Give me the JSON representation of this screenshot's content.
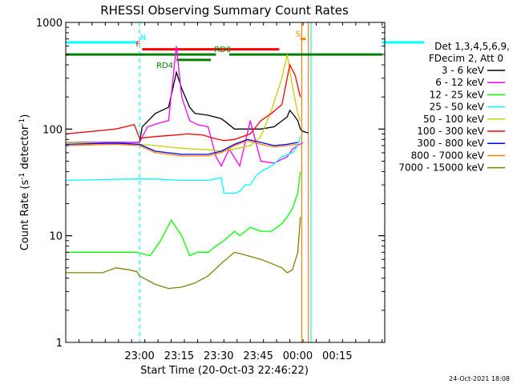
{
  "chart_data": {
    "type": "line",
    "title": "RHESSI Observing Summary Count Rates",
    "xlabel": "Start Time (20-Oct-03 22:46:22)",
    "ylabel_main": "Count Rate (s",
    "ylabel_sup1": "-1",
    "ylabel_mid": " detector",
    "ylabel_sup2": "-1",
    "ylabel_end": ")",
    "y_scale": "log",
    "ylim": [
      1,
      1000
    ],
    "xlim_min": [
      -14,
      107
    ],
    "x_ticks_min": [
      14,
      29,
      44,
      59,
      74,
      89
    ],
    "x_tick_labels": [
      "23:00",
      "23:15",
      "23:30",
      "23:45",
      "00:00",
      "00:15"
    ],
    "y_tick_values": [
      1,
      10,
      100,
      1000
    ],
    "y_tick_labels": [
      "1",
      "10",
      "100",
      "1000"
    ],
    "legend_header": [
      "Det 1,3,4,5,6,9,",
      "FDecim 2, Att 0"
    ],
    "stamp": "24-Oct-2021 18:08",
    "series": [
      {
        "name": "3 - 6 keV",
        "color": "#000000",
        "x": [
          -14,
          14,
          15,
          20,
          25,
          28,
          30,
          33,
          35,
          40,
          45,
          47,
          50,
          55,
          60,
          65,
          70,
          71,
          73,
          74,
          75,
          76,
          78
        ],
        "y": [
          75,
          75,
          105,
          140,
          160,
          340,
          240,
          160,
          140,
          135,
          125,
          115,
          100,
          100,
          100,
          105,
          130,
          150,
          130,
          120,
          100,
          95,
          92
        ]
      },
      {
        "name": "6 - 12 keV",
        "color": "#ff00ff",
        "x": [
          -14,
          14,
          17,
          22,
          25,
          28,
          30,
          33,
          36,
          40,
          43,
          45,
          48,
          52,
          56,
          60,
          65,
          70,
          72,
          74,
          76
        ],
        "y": [
          75,
          75,
          105,
          115,
          120,
          600,
          200,
          120,
          110,
          105,
          55,
          45,
          65,
          45,
          120,
          50,
          48,
          55,
          65,
          70,
          75
        ]
      },
      {
        "name": "12 - 25 keV",
        "color": "#00ff00",
        "x": [
          -14,
          13,
          18,
          22,
          26,
          30,
          33,
          36,
          40,
          43,
          46,
          50,
          52,
          56,
          60,
          64,
          68,
          70,
          72,
          74,
          75
        ],
        "y": [
          7,
          7,
          6.5,
          9,
          14,
          10,
          6.5,
          7,
          7,
          8,
          9,
          11,
          10,
          12,
          11,
          11,
          13,
          15,
          18,
          25,
          40
        ]
      },
      {
        "name": "25 - 50 keV",
        "color": "#00ffff",
        "x": [
          -14,
          10,
          20,
          30,
          40,
          45,
          46,
          50,
          52,
          54,
          56,
          58,
          60,
          64,
          68,
          72,
          74,
          75
        ],
        "y": [
          33,
          34,
          34,
          33,
          33,
          35,
          25,
          25,
          26,
          30,
          30,
          36,
          40,
          45,
          55,
          60,
          70,
          85
        ]
      },
      {
        "name": "50 - 100 keV",
        "color": "#cccc00",
        "x": [
          -14,
          14,
          20,
          30,
          40,
          45,
          50,
          56,
          60,
          64,
          68,
          70,
          72,
          74,
          75
        ],
        "y": [
          75,
          72,
          70,
          66,
          64,
          62,
          65,
          70,
          85,
          150,
          300,
          500,
          250,
          140,
          120
        ]
      },
      {
        "name": "100 - 300 keV",
        "color": "#ff0000",
        "x": [
          -14,
          5,
          12,
          14,
          20,
          28,
          32,
          38,
          42,
          46,
          50,
          56,
          60,
          64,
          68,
          71,
          73,
          75
        ],
        "y": [
          90,
          100,
          110,
          82,
          85,
          88,
          90,
          88,
          82,
          78,
          80,
          90,
          120,
          140,
          170,
          400,
          320,
          200
        ]
      },
      {
        "name": "300 - 800 keV",
        "color": "#0000ff",
        "x": [
          -14,
          5,
          14,
          20,
          30,
          40,
          45,
          50,
          55,
          60,
          65,
          70,
          74
        ],
        "y": [
          72,
          74,
          72,
          62,
          58,
          58,
          62,
          72,
          80,
          75,
          70,
          72,
          75
        ]
      },
      {
        "name": "800 - 7000 keV",
        "color": "#ff8000",
        "x": [
          -14,
          5,
          14,
          20,
          30,
          40,
          45,
          50,
          55,
          60,
          65,
          70,
          74
        ],
        "y": [
          70,
          72,
          70,
          60,
          56,
          56,
          60,
          70,
          78,
          72,
          68,
          70,
          72
        ]
      },
      {
        "name": "7000 - 15000 keV",
        "color": "#808000",
        "x": [
          -14,
          0,
          5,
          10,
          13,
          14,
          20,
          25,
          30,
          35,
          40,
          45,
          50,
          55,
          60,
          64,
          68,
          70,
          72,
          74,
          75
        ],
        "y": [
          4.5,
          4.5,
          5,
          4.8,
          4.6,
          4.2,
          3.5,
          3.2,
          3.3,
          3.6,
          4.2,
          5.5,
          7,
          6.5,
          6,
          5.5,
          5,
          4.5,
          4.8,
          7,
          15
        ]
      }
    ],
    "segments": [
      {
        "label": "N",
        "color": "#00ffff",
        "segments": [
          [
            -14,
            13
          ],
          [
            106,
            122
          ]
        ],
        "y": 650
      },
      {
        "label": "F",
        "color": "#ff0000",
        "segments": [
          [
            15,
            67
          ]
        ],
        "y": 560
      },
      {
        "label": "RD0",
        "color": "#008000",
        "segments": [
          [
            -14,
            43
          ],
          [
            48,
            106
          ]
        ],
        "y": 500
      },
      {
        "label": "RD4",
        "color": "#008000",
        "segments": [
          [
            28,
            41
          ]
        ],
        "y": 445
      },
      {
        "label": "S",
        "color": "#ff8000",
        "segments": [
          [
            75,
            77
          ]
        ],
        "y": 700
      }
    ],
    "vlines": [
      {
        "x": 14,
        "color": "#00ffff",
        "style": "dashed"
      },
      {
        "x": 107,
        "color": "#00ffff",
        "style": "dashed"
      },
      {
        "x": 75.5,
        "color": "#ff8000",
        "style": "solid"
      },
      {
        "x": 78,
        "color": "#ff8000",
        "style": "solid"
      },
      {
        "x": 79,
        "color": "#00ffff",
        "style": "solid"
      }
    ],
    "grid": false,
    "legend_position": "right"
  }
}
